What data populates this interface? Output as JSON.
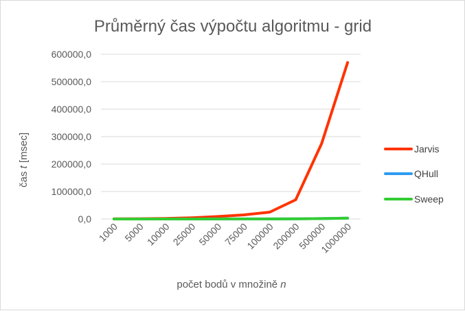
{
  "chart_data": {
    "type": "line",
    "title": "Průměrný čas výpočtu algoritmu - grid",
    "xlabel": {
      "text": "počet bodů v množině ",
      "var": "n"
    },
    "ylabel": {
      "prefix": "čas ",
      "var": "t",
      "suffix": " [msec]"
    },
    "categories": [
      "1000",
      "5000",
      "10000",
      "25000",
      "50000",
      "75000",
      "100000",
      "200000",
      "500000",
      "1000000"
    ],
    "ylim": [
      0,
      600000
    ],
    "yticks": [
      {
        "value": 0,
        "label": "0,0"
      },
      {
        "value": 100000,
        "label": "100000,0"
      },
      {
        "value": 200000,
        "label": "200000,0"
      },
      {
        "value": 300000,
        "label": "300000,0"
      },
      {
        "value": 400000,
        "label": "400000,0"
      },
      {
        "value": 500000,
        "label": "500000,0"
      },
      {
        "value": 600000,
        "label": "600000,0"
      }
    ],
    "grid": true,
    "legend_position": "right",
    "series": [
      {
        "name": "Jarvis",
        "color": "#ff3300",
        "values": [
          400,
          1000,
          2000,
          4500,
          9000,
          15000,
          25000,
          70000,
          275000,
          570000
        ]
      },
      {
        "name": "QHull",
        "color": "#2e9bf0",
        "values": [
          10,
          20,
          40,
          80,
          150,
          220,
          300,
          600,
          1500,
          3000
        ]
      },
      {
        "name": "Sweep",
        "color": "#33cc33",
        "values": [
          10,
          20,
          40,
          80,
          150,
          220,
          300,
          600,
          1500,
          3000
        ]
      }
    ]
  }
}
